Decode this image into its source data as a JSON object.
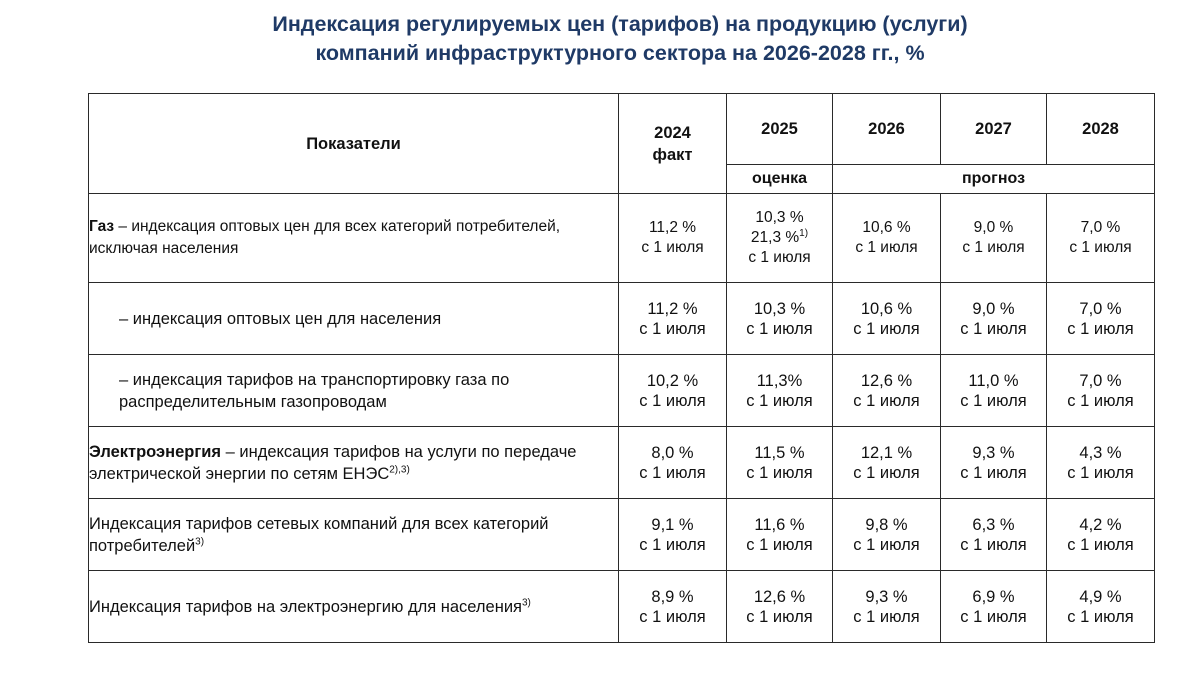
{
  "title": {
    "line1": "Индексация регулируемых цен (тарифов) на продукцию (услуги)",
    "line2": "компаний инфраструктурного сектора на 2026-2028 гг., %"
  },
  "table": {
    "header": {
      "indicators": "Показатели",
      "y2024_line1": "2024",
      "y2024_line2": "факт",
      "y2025": "2025",
      "y2026": "2026",
      "y2027": "2027",
      "y2028": "2028",
      "estimate": "оценка",
      "forecast": "прогноз"
    },
    "rows": [
      {
        "label_bold": "Газ",
        "label_rest": " – индексация оптовых цен для всех категорий потребителей, исключая населения",
        "v2024": [
          "11,2 %",
          "с 1 июля"
        ],
        "v2025": [
          "10,3 %",
          "21,3 %",
          "1)",
          "с 1 июля"
        ],
        "v2026": [
          "10,6 %",
          "с 1 июля"
        ],
        "v2027": [
          "9,0 %",
          "с 1 июля"
        ],
        "v2028": [
          "7,0 %",
          "с 1 июля"
        ]
      },
      {
        "label": "– индексация оптовых цен для населения",
        "v2024": [
          "11,2 %",
          "с 1 июля"
        ],
        "v2025": [
          "10,3 %",
          "с 1 июля"
        ],
        "v2026": [
          "10,6 %",
          "с 1 июля"
        ],
        "v2027": [
          "9,0 %",
          "с 1 июля"
        ],
        "v2028": [
          "7,0 %",
          "с 1 июля"
        ]
      },
      {
        "label": "– индексация тарифов на транспортировку газа по распределительным газопроводам",
        "v2024": [
          "10,2 %",
          "с 1 июля"
        ],
        "v2025": [
          "11,3%",
          "с 1 июля"
        ],
        "v2026": [
          "12,6 %",
          "с 1 июля"
        ],
        "v2027": [
          "11,0 %",
          "с 1 июля"
        ],
        "v2028": [
          "7,0 %",
          "с 1 июля"
        ]
      },
      {
        "label_bold": "Электроэнергия",
        "label_rest": " – индексация тарифов на услуги по передаче электрической энергии по сетям ЕНЭС",
        "label_sup": "2),3)",
        "v2024": [
          "8,0 %",
          "с 1 июля"
        ],
        "v2025": [
          "11,5 %",
          "с 1 июля"
        ],
        "v2026": [
          "12,1 %",
          "с 1 июля"
        ],
        "v2027": [
          "9,3 %",
          "с 1 июля"
        ],
        "v2028": [
          "4,3 %",
          "с 1 июля"
        ]
      },
      {
        "label": "Индексация тарифов сетевых компаний для всех категорий потребителей",
        "label_sup": "3)",
        "v2024": [
          "9,1 %",
          "с 1 июля"
        ],
        "v2025": [
          "11,6 %",
          "с 1 июля"
        ],
        "v2026": [
          "9,8 %",
          "с 1 июля"
        ],
        "v2027": [
          "6,3 %",
          "с 1 июля"
        ],
        "v2028": [
          "4,2 %",
          "с 1 июля"
        ]
      },
      {
        "label": "Индексация тарифов на электроэнергию для населения",
        "label_sup": "3)",
        "v2024": [
          "8,9 %",
          "с 1 июля"
        ],
        "v2025": [
          "12,6 %",
          "с 1 июля"
        ],
        "v2026": [
          "9,3 %",
          "с 1 июля"
        ],
        "v2027": [
          "6,9 %",
          "с 1 июля"
        ],
        "v2028": [
          "4,9 %",
          "с 1 июля"
        ]
      }
    ]
  }
}
